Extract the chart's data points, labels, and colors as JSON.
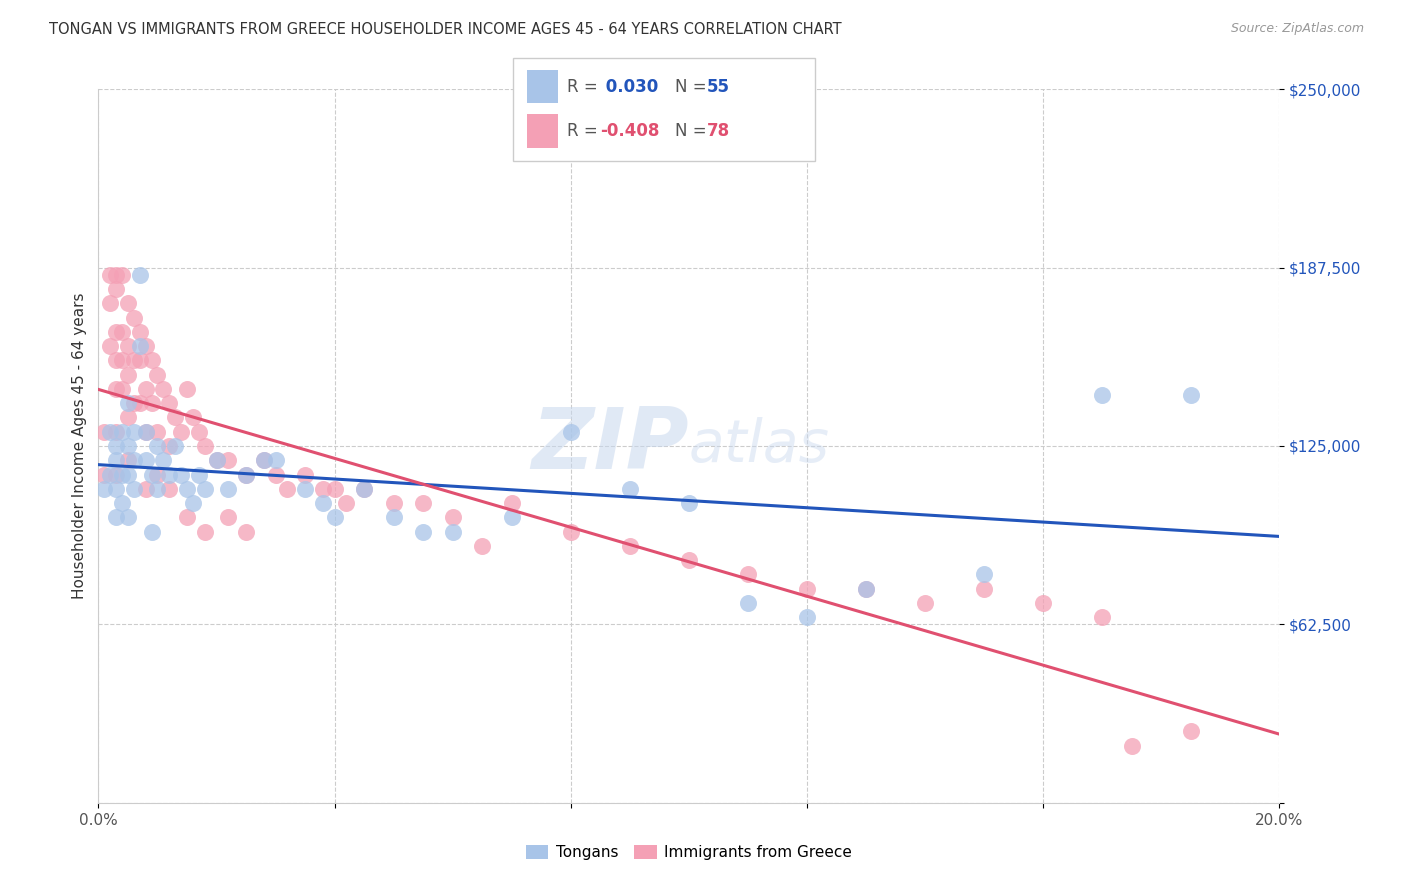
{
  "title": "TONGAN VS IMMIGRANTS FROM GREECE HOUSEHOLDER INCOME AGES 45 - 64 YEARS CORRELATION CHART",
  "source": "Source: ZipAtlas.com",
  "ylabel": "Householder Income Ages 45 - 64 years",
  "xlim": [
    0,
    0.2
  ],
  "ylim": [
    0,
    250000
  ],
  "yticks": [
    0,
    62500,
    125000,
    187500,
    250000
  ],
  "ytick_labels": [
    "",
    "$62,500",
    "$125,000",
    "$187,500",
    "$250,000"
  ],
  "xticks": [
    0.0,
    0.04,
    0.08,
    0.12,
    0.16,
    0.2
  ],
  "xtick_labels": [
    "0.0%",
    "",
    "",
    "",
    "",
    "20.0%"
  ],
  "legend_blue_r": " 0.030",
  "legend_blue_n": "55",
  "legend_pink_r": "-0.408",
  "legend_pink_n": "78",
  "legend_label_blue": "Tongans",
  "legend_label_pink": "Immigrants from Greece",
  "blue_color": "#a8c4e8",
  "pink_color": "#f4a0b5",
  "line_blue": "#2255bb",
  "line_pink": "#e05070",
  "watermark_zip": "ZIP",
  "watermark_atlas": "atlas",
  "background_color": "#ffffff",
  "grid_color": "#cccccc",
  "blue_scatter_x": [
    0.001,
    0.002,
    0.002,
    0.003,
    0.003,
    0.003,
    0.003,
    0.004,
    0.004,
    0.004,
    0.005,
    0.005,
    0.005,
    0.005,
    0.006,
    0.006,
    0.006,
    0.007,
    0.007,
    0.008,
    0.008,
    0.009,
    0.009,
    0.01,
    0.01,
    0.011,
    0.012,
    0.013,
    0.014,
    0.015,
    0.016,
    0.017,
    0.018,
    0.02,
    0.022,
    0.025,
    0.028,
    0.03,
    0.035,
    0.038,
    0.04,
    0.045,
    0.05,
    0.055,
    0.06,
    0.07,
    0.08,
    0.09,
    0.1,
    0.11,
    0.12,
    0.13,
    0.15,
    0.17,
    0.185
  ],
  "blue_scatter_y": [
    110000,
    130000,
    115000,
    125000,
    120000,
    110000,
    100000,
    130000,
    115000,
    105000,
    140000,
    125000,
    115000,
    100000,
    130000,
    120000,
    110000,
    185000,
    160000,
    130000,
    120000,
    115000,
    95000,
    125000,
    110000,
    120000,
    115000,
    125000,
    115000,
    110000,
    105000,
    115000,
    110000,
    120000,
    110000,
    115000,
    120000,
    120000,
    110000,
    105000,
    100000,
    110000,
    100000,
    95000,
    95000,
    100000,
    130000,
    110000,
    105000,
    70000,
    65000,
    75000,
    80000,
    143000,
    143000
  ],
  "pink_scatter_x": [
    0.001,
    0.001,
    0.002,
    0.002,
    0.002,
    0.003,
    0.003,
    0.003,
    0.003,
    0.003,
    0.003,
    0.004,
    0.004,
    0.004,
    0.004,
    0.005,
    0.005,
    0.005,
    0.005,
    0.006,
    0.006,
    0.006,
    0.007,
    0.007,
    0.007,
    0.008,
    0.008,
    0.008,
    0.009,
    0.009,
    0.01,
    0.01,
    0.011,
    0.012,
    0.012,
    0.013,
    0.014,
    0.015,
    0.016,
    0.017,
    0.018,
    0.02,
    0.022,
    0.025,
    0.028,
    0.03,
    0.032,
    0.035,
    0.038,
    0.04,
    0.042,
    0.045,
    0.05,
    0.055,
    0.06,
    0.065,
    0.07,
    0.08,
    0.09,
    0.1,
    0.11,
    0.12,
    0.13,
    0.14,
    0.15,
    0.16,
    0.17,
    0.003,
    0.005,
    0.008,
    0.01,
    0.012,
    0.015,
    0.018,
    0.022,
    0.025,
    0.175,
    0.185
  ],
  "pink_scatter_y": [
    130000,
    115000,
    185000,
    175000,
    160000,
    185000,
    180000,
    165000,
    155000,
    145000,
    130000,
    185000,
    165000,
    155000,
    145000,
    175000,
    160000,
    150000,
    135000,
    170000,
    155000,
    140000,
    165000,
    155000,
    140000,
    160000,
    145000,
    130000,
    155000,
    140000,
    150000,
    130000,
    145000,
    140000,
    125000,
    135000,
    130000,
    145000,
    135000,
    130000,
    125000,
    120000,
    120000,
    115000,
    120000,
    115000,
    110000,
    115000,
    110000,
    110000,
    105000,
    110000,
    105000,
    105000,
    100000,
    90000,
    105000,
    95000,
    90000,
    85000,
    80000,
    75000,
    75000,
    70000,
    75000,
    70000,
    65000,
    115000,
    120000,
    110000,
    115000,
    110000,
    100000,
    95000,
    100000,
    95000,
    20000,
    25000
  ]
}
